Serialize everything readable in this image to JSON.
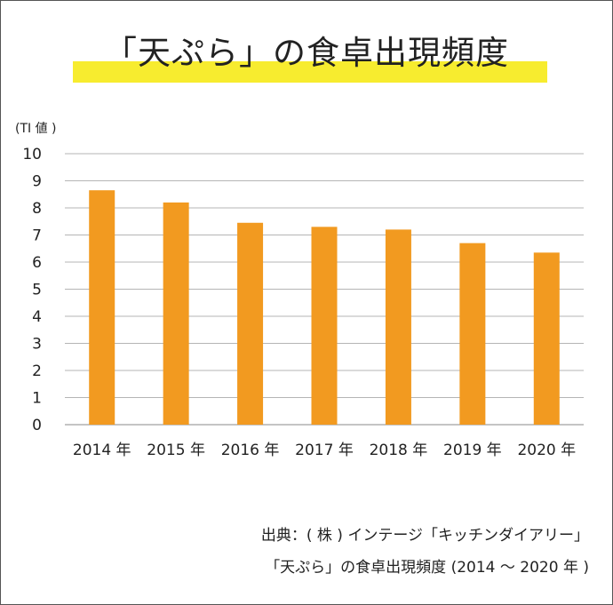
{
  "chart_data": {
    "type": "bar",
    "title": "「天ぷら」の食卓出現頻度",
    "ylabel": "(TI 値 )",
    "xlabel": "",
    "categories": [
      "2014 年",
      "2015 年",
      "2016 年",
      "2017 年",
      "2018 年",
      "2019 年",
      "2020 年"
    ],
    "values": [
      8.65,
      8.2,
      7.45,
      7.3,
      7.2,
      6.7,
      6.35
    ],
    "ylim": [
      0,
      10
    ],
    "yticks": [
      "0",
      "1",
      "2",
      "3",
      "4",
      "5",
      "6",
      "7",
      "8",
      "9",
      "10"
    ],
    "grid": true,
    "bar_color": "#f29a20",
    "highlight_color": "#f7ec2f"
  },
  "source": {
    "line1": "出典：( 株 ) インテージ「キッチンダイアリー」",
    "line2": "「天ぷら」の食卓出現頻度 (2014 ～ 2020 年 )"
  }
}
